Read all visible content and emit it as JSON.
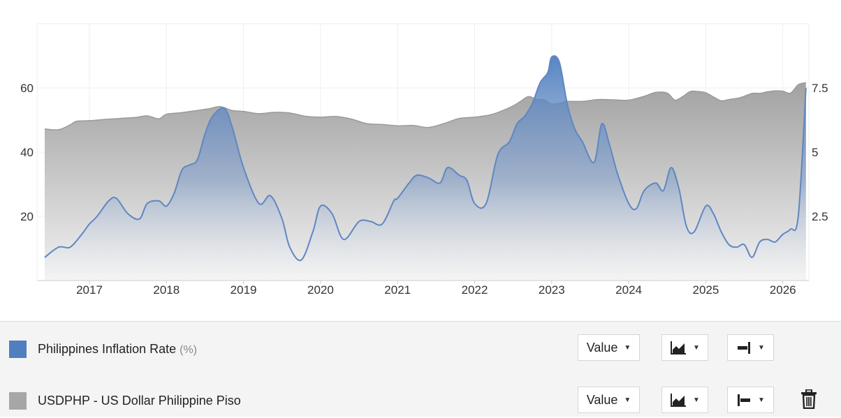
{
  "chart_data": {
    "type": "area",
    "x_ticks": [
      "2017",
      "2018",
      "2019",
      "2020",
      "2021",
      "2022",
      "2023",
      "2024",
      "2025",
      "2026"
    ],
    "x_range": [
      2016.35,
      2026.35
    ],
    "left_axis": {
      "ticks": [
        "20",
        "40",
        "60"
      ],
      "range": [
        0,
        80
      ]
    },
    "right_axis": {
      "ticks": [
        "2.5",
        "5",
        "7.5"
      ],
      "range": [
        0,
        10
      ]
    },
    "grid": true,
    "series": [
      {
        "name": "USDPHP - US Dollar Philippine Piso",
        "axis": "left",
        "color": "#a6a6a6",
        "x": [
          2016.42,
          2016.6,
          2016.75,
          2016.83,
          2017.0,
          2017.2,
          2017.4,
          2017.6,
          2017.75,
          2017.9,
          2018.0,
          2018.2,
          2018.4,
          2018.55,
          2018.7,
          2018.85,
          2019.0,
          2019.2,
          2019.4,
          2019.6,
          2019.8,
          2020.0,
          2020.2,
          2020.4,
          2020.6,
          2020.8,
          2021.0,
          2021.2,
          2021.4,
          2021.6,
          2021.8,
          2022.0,
          2022.2,
          2022.35,
          2022.5,
          2022.6,
          2022.7,
          2022.8,
          2022.9,
          2023.0,
          2023.1,
          2023.2,
          2023.4,
          2023.6,
          2023.8,
          2024.0,
          2024.2,
          2024.35,
          2024.5,
          2024.6,
          2024.7,
          2024.8,
          2024.9,
          2025.0,
          2025.1,
          2025.2,
          2025.3,
          2025.45,
          2025.6,
          2025.7,
          2025.8,
          2025.9,
          2026.0,
          2026.1,
          2026.2,
          2026.3
        ],
        "values": [
          47.2,
          47.0,
          48.5,
          49.6,
          49.8,
          50.2,
          50.5,
          50.8,
          51.3,
          50.4,
          51.8,
          52.3,
          53.0,
          53.5,
          54.2,
          53.0,
          52.7,
          52.0,
          52.4,
          52.2,
          51.2,
          50.9,
          51.1,
          50.3,
          48.9,
          48.6,
          48.2,
          48.3,
          47.7,
          48.9,
          50.5,
          50.9,
          51.6,
          52.8,
          54.4,
          55.9,
          57.3,
          56.5,
          56.3,
          55.0,
          55.2,
          55.8,
          55.8,
          56.4,
          56.3,
          56.2,
          57.4,
          58.6,
          58.4,
          56.2,
          57.3,
          58.9,
          58.9,
          58.5,
          57.2,
          56.0,
          56.4,
          57.0,
          58.3,
          58.3,
          58.8,
          59.1,
          59.0,
          58.4,
          61.0,
          61.6
        ]
      },
      {
        "name": "Philippines Inflation Rate",
        "unit": "(%)",
        "axis": "right",
        "color": "#4f7fbf",
        "x": [
          2016.42,
          2016.6,
          2016.75,
          2016.9,
          2017.0,
          2017.1,
          2017.25,
          2017.35,
          2017.5,
          2017.65,
          2017.75,
          2017.9,
          2018.0,
          2018.1,
          2018.2,
          2018.3,
          2018.4,
          2018.5,
          2018.6,
          2018.75,
          2018.85,
          2019.0,
          2019.2,
          2019.35,
          2019.5,
          2019.6,
          2019.75,
          2019.9,
          2020.0,
          2020.15,
          2020.3,
          2020.5,
          2020.65,
          2020.8,
          2020.95,
          2021.0,
          2021.15,
          2021.25,
          2021.4,
          2021.55,
          2021.65,
          2021.8,
          2021.9,
          2022.0,
          2022.15,
          2022.3,
          2022.45,
          2022.55,
          2022.65,
          2022.75,
          2022.85,
          2022.95,
          2023.0,
          2023.1,
          2023.2,
          2023.3,
          2023.4,
          2023.55,
          2023.65,
          2023.75,
          2023.85,
          2024.0,
          2024.1,
          2024.2,
          2024.35,
          2024.45,
          2024.55,
          2024.65,
          2024.75,
          2024.85,
          2025.0,
          2025.1,
          2025.2,
          2025.3,
          2025.4,
          2025.5,
          2025.6,
          2025.7,
          2025.8,
          2025.9,
          2026.0,
          2026.1,
          2026.2,
          2026.3
        ],
        "values": [
          0.9,
          1.3,
          1.3,
          1.8,
          2.2,
          2.5,
          3.1,
          3.2,
          2.6,
          2.4,
          3.0,
          3.1,
          2.9,
          3.4,
          4.3,
          4.5,
          4.7,
          5.7,
          6.4,
          6.7,
          6.0,
          4.4,
          3.0,
          3.3,
          2.4,
          1.3,
          0.8,
          1.9,
          2.9,
          2.6,
          1.6,
          2.3,
          2.3,
          2.2,
          3.1,
          3.2,
          3.8,
          4.1,
          4.0,
          3.8,
          4.4,
          4.1,
          3.9,
          3.0,
          3.0,
          4.9,
          5.4,
          6.1,
          6.4,
          6.9,
          7.7,
          8.1,
          8.7,
          8.5,
          6.9,
          5.9,
          5.4,
          4.6,
          6.1,
          5.3,
          4.2,
          3.0,
          2.8,
          3.5,
          3.8,
          3.5,
          4.4,
          3.6,
          2.1,
          1.9,
          2.9,
          2.6,
          1.9,
          1.4,
          1.3,
          1.4,
          0.9,
          1.5,
          1.6,
          1.5,
          1.8,
          2.0,
          2.5,
          7.5
        ]
      }
    ]
  },
  "legend": [
    {
      "label": "Philippines Inflation Rate",
      "unit": "(%)",
      "color": "#4f7fbf",
      "value_btn": "Value"
    },
    {
      "label": "USDPHP - US Dollar Philippine Piso",
      "unit": "",
      "color": "#a6a6a6",
      "value_btn": "Value"
    }
  ],
  "icons": {
    "chart_type": "area-chart-icon",
    "axis_right": "right-axis-icon",
    "axis_left": "left-axis-icon",
    "delete": "trash-icon"
  }
}
